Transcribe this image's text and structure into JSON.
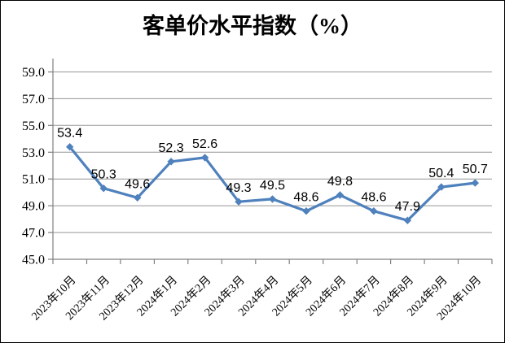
{
  "chart_data": {
    "type": "line",
    "title": "客单价水平指数（%）",
    "categories": [
      "2023年10月",
      "2023年11月",
      "2023年12月",
      "2024年1月",
      "2024年2月",
      "2024年3月",
      "2024年4月",
      "2024年5月",
      "2024年6月",
      "2024年7月",
      "2024年8月",
      "2024年9月",
      "2024年10月"
    ],
    "values": [
      53.4,
      50.3,
      49.6,
      52.3,
      52.6,
      49.3,
      49.5,
      48.6,
      49.8,
      48.6,
      47.9,
      50.4,
      50.7
    ],
    "data_labels": [
      "53.4",
      "50.3",
      "49.6",
      "52.3",
      "52.6",
      "49.3",
      "49.5",
      "48.6",
      "49.8",
      "48.6",
      "47.9",
      "50.4",
      "50.7"
    ],
    "y_ticks": [
      45.0,
      47.0,
      49.0,
      51.0,
      53.0,
      55.0,
      57.0,
      59.0
    ],
    "y_tick_labels": [
      "45.0",
      "47.0",
      "49.0",
      "51.0",
      "53.0",
      "55.0",
      "57.0",
      "59.0"
    ],
    "ylim": [
      45,
      60
    ],
    "xlabel": "",
    "ylabel": "",
    "grid": true,
    "legend": "none",
    "colors": {
      "line": "#4F81BD",
      "marker": "#4F81BD",
      "gridline": "#969696",
      "axis": "#808080",
      "text": "#000000",
      "background": "#FFFFFF",
      "border": "#000000"
    }
  }
}
